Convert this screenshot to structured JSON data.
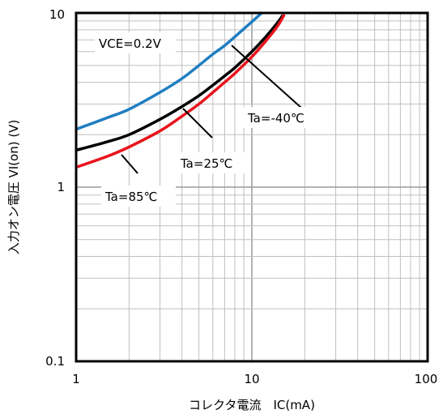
{
  "chart_data": {
    "type": "line",
    "xscale": "log",
    "yscale": "log",
    "xlim": [
      1,
      100
    ],
    "ylim": [
      0.1,
      10
    ],
    "xlabel": "コレクタ電流　IC(mA)",
    "ylabel": "入力オン電圧 VI(on) (V)",
    "xticks": [
      "1",
      "10",
      "100"
    ],
    "yticks": [
      "0.1",
      "1",
      "10"
    ],
    "grid": true,
    "condition": "VCE=0.2V",
    "series": [
      {
        "name": "Ta=-40℃",
        "color": "#1f7ec2",
        "x": [
          1,
          1.5,
          2,
          3,
          4,
          5,
          6,
          7,
          8,
          10,
          12,
          14
        ],
        "y": [
          2.15,
          2.5,
          2.8,
          3.5,
          4.2,
          5.0,
          5.8,
          6.5,
          7.3,
          8.9,
          10.5,
          12.1
        ]
      },
      {
        "name": "Ta=25℃",
        "color": "#000000",
        "x": [
          1,
          1.5,
          2,
          3,
          4,
          5,
          6,
          7,
          8,
          10,
          12,
          14,
          15
        ],
        "y": [
          1.63,
          1.82,
          2.0,
          2.45,
          2.9,
          3.35,
          3.85,
          4.35,
          4.85,
          6.0,
          7.3,
          8.8,
          9.7
        ]
      },
      {
        "name": "Ta=85℃",
        "color": "#e8141c",
        "x": [
          1,
          1.5,
          2,
          3,
          4,
          5,
          6,
          7,
          8,
          10,
          12,
          14,
          15.3
        ],
        "y": [
          1.3,
          1.5,
          1.7,
          2.1,
          2.55,
          3.0,
          3.5,
          4.0,
          4.5,
          5.6,
          6.9,
          8.4,
          9.8
        ]
      }
    ]
  }
}
